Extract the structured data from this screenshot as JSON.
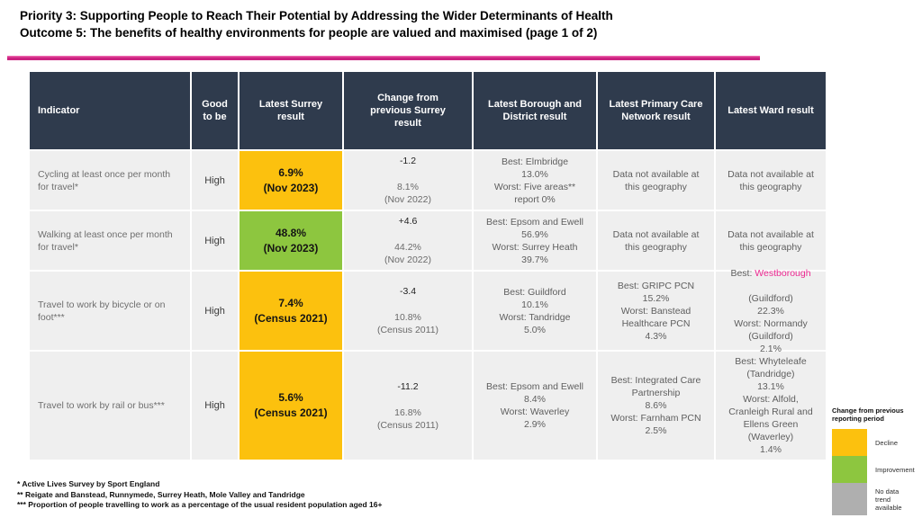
{
  "title": {
    "line1": "Priority 3: Supporting People to Reach Their Potential by Addressing the Wider Determinants of Health",
    "line2": "Outcome 5: The benefits of healthy environments for people are valued and maximised (page 1 of 2)"
  },
  "colors": {
    "accent_pink": "#CB2280",
    "link_pink": "#ED2891",
    "header_bg": "#2F3B4D",
    "cell_bg": "#EFEFEF",
    "decline_yellow": "#FCC10E",
    "improvement_green": "#8DC63F",
    "no_data_gray": "#AFAFAF"
  },
  "table": {
    "headers": [
      "Indicator",
      "Good\nto be",
      "Latest Surrey\nresult",
      "Change from\nprevious Surrey\nresult",
      "Latest Borough and\nDistrict result",
      "Latest Primary Care\nNetwork result",
      "Latest Ward result"
    ],
    "rows": [
      {
        "indicator": "Cycling at least once per month for travel*",
        "good_to_be": "High",
        "surrey_result": "6.9%\n(Nov 2023)",
        "surrey_status": "decline",
        "change_value": "-1.2",
        "change_rest": "8.1%\n(Nov 2022)",
        "borough": "Best: Elmbridge\n13.0%\nWorst: Five areas**\nreport 0%",
        "pcn": "Data not available at\nthis geography",
        "ward": "Data not available at\nthis geography"
      },
      {
        "indicator": "Walking at least once per month for travel*",
        "good_to_be": "High",
        "surrey_result": "48.8%\n(Nov 2023)",
        "surrey_status": "improvement",
        "change_value": "+4.6",
        "change_rest": "44.2%\n(Nov 2022)",
        "borough": "Best: Epsom and Ewell\n56.9%\nWorst: Surrey Heath\n39.7%",
        "pcn": "Data not available at\nthis geography",
        "ward": "Data not available at\nthis geography"
      },
      {
        "indicator": "Travel to work by bicycle or on foot***",
        "good_to_be": "High",
        "surrey_result": "7.4%\n(Census 2021)",
        "surrey_status": "decline",
        "change_value": "-3.4",
        "change_rest": "10.8%\n(Census 2011)",
        "borough": "Best: Guildford\n10.1%\nWorst: Tandridge\n5.0%",
        "pcn": "Best: GRIPC PCN\n15.2%\nWorst: Banstead\nHealthcare PCN\n4.3%",
        "ward_prefix": "Best: ",
        "ward_link": "Westborough",
        "ward_rest": "(Guildford)\n22.3%\nWorst: Normandy\n(Guildford)\n2.1%"
      },
      {
        "indicator": "Travel to work by rail or bus***",
        "good_to_be": "High",
        "surrey_result": "5.6%\n(Census 2021)",
        "surrey_status": "decline",
        "change_value": "-11.2",
        "change_rest": "16.8%\n(Census 2011)",
        "borough": "Best: Epsom and Ewell\n8.4%\nWorst: Waverley\n2.9%",
        "pcn": "Best: Integrated Care\nPartnership\n8.6%\nWorst: Farnham PCN\n2.5%",
        "ward": "Best: Whyteleafe\n(Tandridge)\n13.1%\nWorst: Alfold,\nCranleigh Rural and\nEllens Green\n(Waverley)\n1.4%"
      }
    ]
  },
  "footnotes": [
    "* Active Lives Survey by Sport England",
    "** Reigate and Banstead, Runnymede, Surrey Heath, Mole Valley and Tandridge",
    "*** Proportion of people travelling to work as a percentage of the usual resident population aged 16+"
  ],
  "legend": {
    "title": "Change from previous\nreporting period",
    "items": [
      {
        "label": "Decline",
        "status": "decline"
      },
      {
        "label": "Improvement",
        "status": "improvement"
      },
      {
        "label": "No data\ntrend\navailable",
        "status": "no_data"
      }
    ]
  }
}
